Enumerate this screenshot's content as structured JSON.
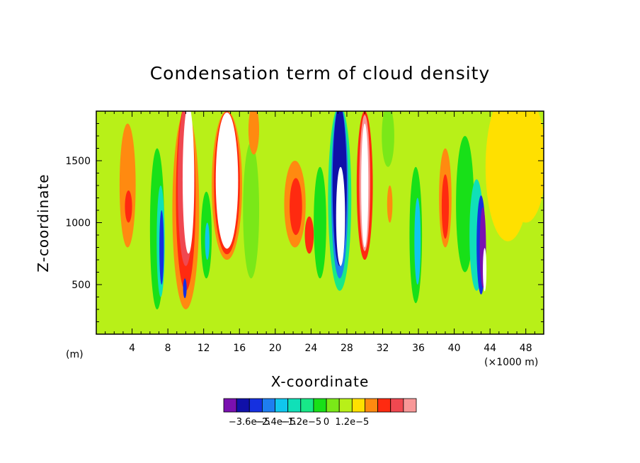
{
  "chart_data": {
    "type": "heatmap",
    "title": "Condensation term of cloud density",
    "xlabel": "X-coordinate",
    "ylabel": "Z-coordinate",
    "x_unit_left": "(m)",
    "x_unit_right": "(×1000 m)",
    "xlim": [
      0,
      50
    ],
    "ylim": [
      100,
      1900
    ],
    "x_ticks": [
      4,
      8,
      12,
      16,
      20,
      24,
      28,
      32,
      36,
      40,
      44,
      48
    ],
    "y_ticks": [
      500,
      1000,
      1500
    ],
    "colorbar": {
      "colors": [
        "#7a10b0",
        "#1010a8",
        "#1530e0",
        "#1e7ef0",
        "#10c6ee",
        "#10e0b8",
        "#18e888",
        "#18e018",
        "#7ae818",
        "#b8f018",
        "#ffe000",
        "#ff8a10",
        "#ff2a10",
        "#f04850",
        "#f89898"
      ],
      "labels": [
        "−3.6e−5",
        "−2.4e−5",
        "−1.2e−5",
        "0",
        "1.2e−5"
      ],
      "label_boundaries": [
        2,
        4,
        6,
        8,
        10
      ]
    },
    "background_color": "#b8f018",
    "features": [
      {
        "x": 3.5,
        "z": 1300,
        "w": 1.8,
        "h": 1000,
        "level": 11
      },
      {
        "x": 3.6,
        "z": 1130,
        "w": 0.8,
        "h": 260,
        "level": 12
      },
      {
        "x": 6.8,
        "z": 950,
        "w": 1.6,
        "h": 1300,
        "level": 7
      },
      {
        "x": 7.2,
        "z": 850,
        "w": 0.9,
        "h": 900,
        "level": 5
      },
      {
        "x": 7.3,
        "z": 800,
        "w": 0.5,
        "h": 600,
        "level": 2
      },
      {
        "x": 10.0,
        "z": 1100,
        "w": 3.0,
        "h": 1600,
        "level": 11
      },
      {
        "x": 10.0,
        "z": 1200,
        "w": 2.2,
        "h": 1500,
        "level": 12
      },
      {
        "x": 10.0,
        "z": 1300,
        "w": 1.8,
        "h": 1300,
        "level": 13
      },
      {
        "x": 10.3,
        "z": 1350,
        "w": 1.3,
        "h": 1200,
        "level": -1
      },
      {
        "x": 9.9,
        "z": 470,
        "w": 0.4,
        "h": 160,
        "level": 2
      },
      {
        "x": 12.3,
        "z": 900,
        "w": 1.2,
        "h": 700,
        "level": 7
      },
      {
        "x": 12.4,
        "z": 850,
        "w": 0.5,
        "h": 300,
        "level": 4
      },
      {
        "x": 14.6,
        "z": 1300,
        "w": 3.4,
        "h": 1200,
        "level": 11
      },
      {
        "x": 14.6,
        "z": 1320,
        "w": 2.9,
        "h": 1150,
        "level": 12
      },
      {
        "x": 14.6,
        "z": 1340,
        "w": 2.5,
        "h": 1100,
        "level": -1
      },
      {
        "x": 17.3,
        "z": 1100,
        "w": 1.8,
        "h": 1100,
        "level": 8
      },
      {
        "x": 17.6,
        "z": 1750,
        "w": 1.2,
        "h": 400,
        "level": 11
      },
      {
        "x": 22.2,
        "z": 1150,
        "w": 2.4,
        "h": 700,
        "level": 11
      },
      {
        "x": 22.3,
        "z": 1130,
        "w": 1.4,
        "h": 460,
        "level": 12
      },
      {
        "x": 23.8,
        "z": 900,
        "w": 1.0,
        "h": 300,
        "level": 12
      },
      {
        "x": 25.0,
        "z": 1000,
        "w": 1.4,
        "h": 900,
        "level": 7
      },
      {
        "x": 27.2,
        "z": 1200,
        "w": 2.6,
        "h": 1500,
        "level": 6
      },
      {
        "x": 27.2,
        "z": 1250,
        "w": 1.9,
        "h": 1400,
        "level": 3
      },
      {
        "x": 27.2,
        "z": 1300,
        "w": 1.6,
        "h": 1300,
        "level": 1
      },
      {
        "x": 27.3,
        "z": 1050,
        "w": 1.0,
        "h": 800,
        "level": -1
      },
      {
        "x": 30.0,
        "z": 1300,
        "w": 1.8,
        "h": 1200,
        "level": 12
      },
      {
        "x": 30.0,
        "z": 1320,
        "w": 1.2,
        "h": 1100,
        "level": 14
      },
      {
        "x": 30.0,
        "z": 1300,
        "w": 0.8,
        "h": 1000,
        "level": -1
      },
      {
        "x": 32.6,
        "z": 1700,
        "w": 1.4,
        "h": 500,
        "level": 8
      },
      {
        "x": 32.8,
        "z": 1150,
        "w": 0.6,
        "h": 300,
        "level": 11
      },
      {
        "x": 35.7,
        "z": 900,
        "w": 1.4,
        "h": 1100,
        "level": 7
      },
      {
        "x": 35.9,
        "z": 850,
        "w": 0.7,
        "h": 700,
        "level": 4
      },
      {
        "x": 39.0,
        "z": 1200,
        "w": 1.4,
        "h": 800,
        "level": 11
      },
      {
        "x": 39.0,
        "z": 1130,
        "w": 0.8,
        "h": 520,
        "level": 12
      },
      {
        "x": 41.2,
        "z": 1150,
        "w": 2.0,
        "h": 1100,
        "level": 7
      },
      {
        "x": 42.5,
        "z": 900,
        "w": 1.6,
        "h": 900,
        "level": 5
      },
      {
        "x": 43.0,
        "z": 820,
        "w": 1.0,
        "h": 800,
        "level": 2
      },
      {
        "x": 43.2,
        "z": 800,
        "w": 0.7,
        "h": 650,
        "level": 0
      },
      {
        "x": 43.4,
        "z": 620,
        "w": 0.4,
        "h": 350,
        "level": -1
      },
      {
        "x": 46.0,
        "z": 1450,
        "w": 5.0,
        "h": 1200,
        "level": 10
      },
      {
        "x": 48.0,
        "z": 1500,
        "w": 4.5,
        "h": 1000,
        "level": 10
      }
    ]
  }
}
